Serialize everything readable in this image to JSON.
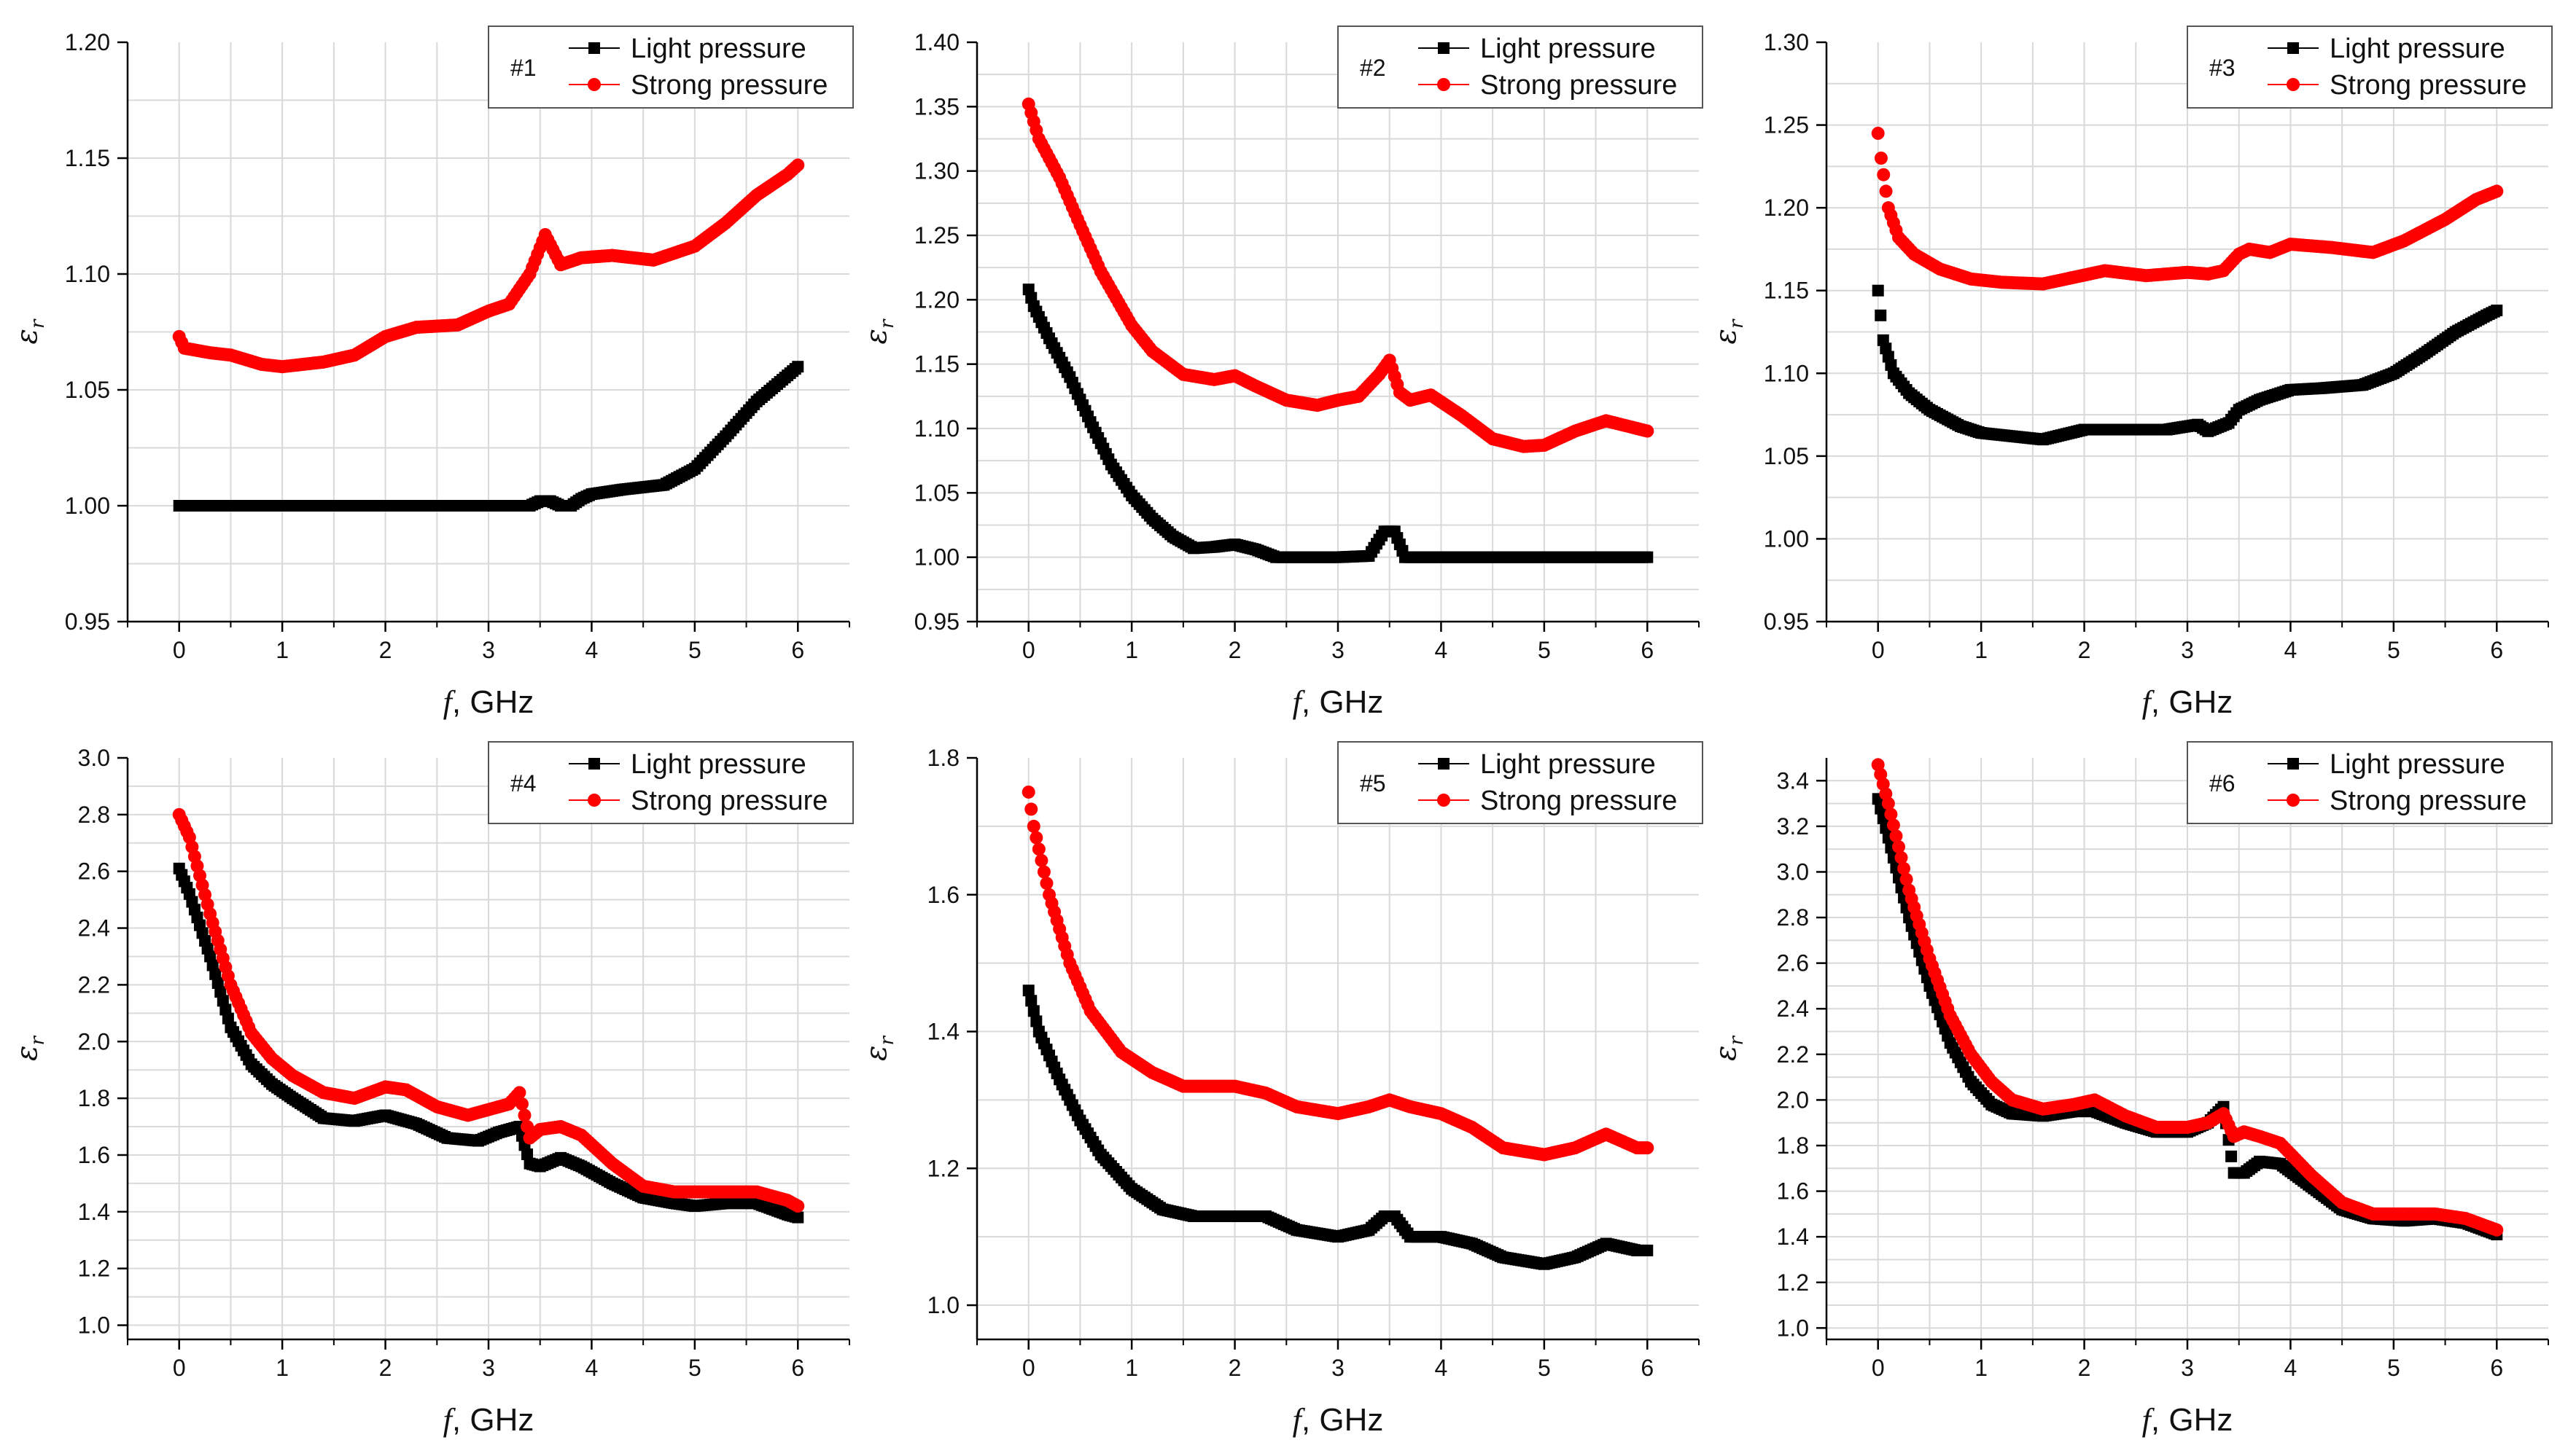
{
  "colors": {
    "light": "#000000",
    "strong": "#ff0000",
    "grid": "#d9d9d9",
    "axis": "#000000"
  },
  "chart_data": [
    {
      "type": "scatter",
      "id": "#1",
      "xlabel_italic": "f",
      "xlabel_unit": ", GHz",
      "ylabel": "ε",
      "ylabel_sub": "r",
      "xlim": [
        -0.5,
        6.5
      ],
      "ylim": [
        0.95,
        1.2
      ],
      "xticks": [
        0,
        1,
        2,
        3,
        4,
        5,
        6
      ],
      "yticks": [
        0.95,
        1.0,
        1.05,
        1.1,
        1.15,
        1.2
      ],
      "yticklabels": [
        "0.95",
        "1.00",
        "1.05",
        "1.10",
        "1.15",
        "1.20"
      ],
      "series": [
        {
          "name": "Light pressure",
          "marker": "square",
          "color": "#000000",
          "x": [
            0,
            0.5,
            1,
            2,
            3,
            3.4,
            3.5,
            3.6,
            3.7,
            3.8,
            3.9,
            4.0,
            4.3,
            4.7,
            5.0,
            5.3,
            5.6,
            6.0
          ],
          "y": [
            1.0,
            1.0,
            1.0,
            1.0,
            1.0,
            1.0,
            1.002,
            1.002,
            1.0,
            1.0,
            1.003,
            1.005,
            1.007,
            1.009,
            1.016,
            1.03,
            1.045,
            1.06
          ]
        },
        {
          "name": "Strong pressure",
          "marker": "circle",
          "color": "#ff0000",
          "x": [
            0,
            0.05,
            0.3,
            0.5,
            0.8,
            1.0,
            1.4,
            1.7,
            2.0,
            2.3,
            2.7,
            3.0,
            3.2,
            3.4,
            3.55,
            3.7,
            3.9,
            4.2,
            4.6,
            5.0,
            5.3,
            5.6,
            5.9,
            6.0
          ],
          "y": [
            1.073,
            1.068,
            1.066,
            1.065,
            1.061,
            1.06,
            1.062,
            1.065,
            1.073,
            1.077,
            1.078,
            1.084,
            1.087,
            1.1,
            1.117,
            1.104,
            1.107,
            1.108,
            1.106,
            1.112,
            1.122,
            1.134,
            1.143,
            1.147
          ]
        }
      ]
    },
    {
      "type": "scatter",
      "id": "#2",
      "xlabel_italic": "f",
      "xlabel_unit": ", GHz",
      "ylabel": "ε",
      "ylabel_sub": "r",
      "xlim": [
        -0.5,
        6.5
      ],
      "ylim": [
        0.95,
        1.4
      ],
      "xticks": [
        0,
        1,
        2,
        3,
        4,
        5,
        6
      ],
      "yticks": [
        0.95,
        1.0,
        1.05,
        1.1,
        1.15,
        1.2,
        1.25,
        1.3,
        1.35,
        1.4
      ],
      "yticklabels": [
        "0.95",
        "1.00",
        "1.05",
        "1.10",
        "1.15",
        "1.20",
        "1.25",
        "1.30",
        "1.35",
        "1.40"
      ],
      "series": [
        {
          "name": "Light pressure",
          "marker": "square",
          "color": "#000000",
          "x": [
            0,
            0.05,
            0.2,
            0.4,
            0.6,
            0.8,
            1.0,
            1.2,
            1.4,
            1.6,
            1.8,
            2.0,
            2.2,
            2.4,
            3.0,
            3.3,
            3.45,
            3.55,
            3.65,
            4.0,
            5.0,
            6.0
          ],
          "y": [
            1.208,
            1.195,
            1.17,
            1.14,
            1.105,
            1.072,
            1.048,
            1.03,
            1.016,
            1.007,
            1.008,
            1.01,
            1.006,
            1.0,
            1.0,
            1.001,
            1.02,
            1.02,
            1.0,
            1.0,
            1.0,
            1.0
          ]
        },
        {
          "name": "Strong pressure",
          "marker": "circle",
          "color": "#ff0000",
          "x": [
            0,
            0.1,
            0.3,
            0.5,
            0.7,
            1.0,
            1.2,
            1.5,
            1.8,
            2.0,
            2.2,
            2.5,
            2.8,
            3.0,
            3.2,
            3.4,
            3.5,
            3.6,
            3.7,
            3.9,
            4.2,
            4.5,
            4.8,
            5.0,
            5.3,
            5.6,
            5.9,
            6.0
          ],
          "y": [
            1.352,
            1.325,
            1.295,
            1.258,
            1.222,
            1.18,
            1.16,
            1.142,
            1.138,
            1.141,
            1.133,
            1.122,
            1.118,
            1.122,
            1.125,
            1.142,
            1.153,
            1.128,
            1.122,
            1.126,
            1.11,
            1.092,
            1.086,
            1.087,
            1.098,
            1.106,
            1.1,
            1.098
          ]
        }
      ]
    },
    {
      "type": "scatter",
      "id": "#3",
      "xlabel_italic": "f",
      "xlabel_unit": ", GHz",
      "ylabel": "ε",
      "ylabel_sub": "r",
      "xlim": [
        -0.5,
        6.5
      ],
      "ylim": [
        0.95,
        1.3
      ],
      "xticks": [
        0,
        1,
        2,
        3,
        4,
        5,
        6
      ],
      "yticks": [
        0.95,
        1.0,
        1.05,
        1.1,
        1.15,
        1.2,
        1.25,
        1.3
      ],
      "yticklabels": [
        "0.95",
        "1.00",
        "1.05",
        "1.10",
        "1.15",
        "1.20",
        "1.25",
        "1.30"
      ],
      "series": [
        {
          "name": "Light pressure",
          "marker": "square",
          "color": "#000000",
          "x": [
            0,
            0.05,
            0.15,
            0.3,
            0.5,
            0.8,
            1.0,
            1.3,
            1.6,
            2.0,
            2.4,
            2.8,
            3.1,
            3.2,
            3.4,
            3.5,
            3.7,
            4.0,
            4.3,
            4.7,
            5.0,
            5.3,
            5.6,
            5.9,
            6.0
          ],
          "y": [
            1.15,
            1.12,
            1.1,
            1.088,
            1.078,
            1.068,
            1.064,
            1.062,
            1.06,
            1.066,
            1.066,
            1.066,
            1.069,
            1.065,
            1.07,
            1.078,
            1.084,
            1.09,
            1.091,
            1.093,
            1.1,
            1.112,
            1.125,
            1.135,
            1.138
          ]
        },
        {
          "name": "Strong pressure",
          "marker": "circle",
          "color": "#ff0000",
          "x": [
            0,
            0.03,
            0.1,
            0.2,
            0.35,
            0.6,
            0.9,
            1.2,
            1.6,
            1.9,
            2.2,
            2.6,
            3.0,
            3.2,
            3.35,
            3.5,
            3.6,
            3.8,
            4.0,
            4.4,
            4.8,
            5.1,
            5.5,
            5.8,
            6.0
          ],
          "y": [
            1.245,
            1.23,
            1.2,
            1.182,
            1.172,
            1.163,
            1.157,
            1.155,
            1.154,
            1.158,
            1.162,
            1.159,
            1.161,
            1.16,
            1.162,
            1.172,
            1.175,
            1.173,
            1.178,
            1.176,
            1.173,
            1.18,
            1.193,
            1.205,
            1.21
          ]
        }
      ]
    },
    {
      "type": "scatter",
      "id": "#4",
      "xlabel_italic": "f",
      "xlabel_unit": ", GHz",
      "ylabel": "ε",
      "ylabel_sub": "r",
      "xlim": [
        -0.5,
        6.5
      ],
      "ylim": [
        0.95,
        3.0
      ],
      "xticks": [
        0,
        1,
        2,
        3,
        4,
        5,
        6
      ],
      "yticks": [
        1.0,
        1.2,
        1.4,
        1.6,
        1.8,
        2.0,
        2.2,
        2.4,
        2.6,
        2.8,
        3.0
      ],
      "yticklabels": [
        "1.0",
        "1.2",
        "1.4",
        "1.6",
        "1.8",
        "2.0",
        "2.2",
        "2.4",
        "2.6",
        "2.8",
        "3.0"
      ],
      "series": [
        {
          "name": "Light pressure",
          "marker": "square",
          "color": "#000000",
          "x": [
            0,
            0.1,
            0.3,
            0.5,
            0.7,
            0.9,
            1.1,
            1.4,
            1.7,
            2.0,
            2.3,
            2.6,
            2.9,
            3.1,
            3.3,
            3.4,
            3.5,
            3.7,
            3.9,
            4.2,
            4.5,
            4.8,
            5.0,
            5.3,
            5.6,
            5.9,
            6.0
          ],
          "y": [
            2.61,
            2.52,
            2.3,
            2.05,
            1.92,
            1.85,
            1.8,
            1.73,
            1.72,
            1.74,
            1.71,
            1.66,
            1.65,
            1.68,
            1.7,
            1.57,
            1.56,
            1.59,
            1.56,
            1.5,
            1.45,
            1.43,
            1.42,
            1.43,
            1.43,
            1.39,
            1.38
          ]
        },
        {
          "name": "Strong pressure",
          "marker": "circle",
          "color": "#ff0000",
          "x": [
            0,
            0.1,
            0.3,
            0.5,
            0.7,
            0.9,
            1.1,
            1.4,
            1.7,
            2.0,
            2.2,
            2.5,
            2.8,
            3.0,
            3.2,
            3.3,
            3.4,
            3.5,
            3.7,
            3.9,
            4.2,
            4.5,
            4.8,
            5.0,
            5.3,
            5.6,
            5.9,
            6.0
          ],
          "y": [
            2.8,
            2.72,
            2.45,
            2.2,
            2.03,
            1.94,
            1.88,
            1.82,
            1.8,
            1.84,
            1.83,
            1.77,
            1.74,
            1.76,
            1.78,
            1.82,
            1.66,
            1.69,
            1.7,
            1.67,
            1.57,
            1.49,
            1.47,
            1.47,
            1.47,
            1.47,
            1.44,
            1.42
          ]
        }
      ]
    },
    {
      "type": "scatter",
      "id": "#5",
      "xlabel_italic": "f",
      "xlabel_unit": ", GHz",
      "ylabel": "ε",
      "ylabel_sub": "r",
      "xlim": [
        -0.5,
        6.5
      ],
      "ylim": [
        0.95,
        1.8
      ],
      "xticks": [
        0,
        1,
        2,
        3,
        4,
        5,
        6
      ],
      "yticks": [
        1.0,
        1.2,
        1.4,
        1.6,
        1.8
      ],
      "yticklabels": [
        "1.0",
        "1.2",
        "1.4",
        "1.6",
        "1.8"
      ],
      "series": [
        {
          "name": "Light pressure",
          "marker": "square",
          "color": "#000000",
          "x": [
            0,
            0.1,
            0.3,
            0.5,
            0.7,
            1.0,
            1.3,
            1.6,
            2.0,
            2.3,
            2.6,
            3.0,
            3.3,
            3.45,
            3.55,
            3.7,
            4.0,
            4.3,
            4.6,
            5.0,
            5.3,
            5.6,
            5.9,
            6.0
          ],
          "y": [
            1.46,
            1.4,
            1.33,
            1.27,
            1.22,
            1.17,
            1.14,
            1.13,
            1.13,
            1.13,
            1.11,
            1.1,
            1.11,
            1.13,
            1.13,
            1.1,
            1.1,
            1.09,
            1.07,
            1.06,
            1.07,
            1.09,
            1.08,
            1.08
          ]
        },
        {
          "name": "Strong pressure",
          "marker": "circle",
          "color": "#ff0000",
          "x": [
            0,
            0.05,
            0.2,
            0.4,
            0.6,
            0.9,
            1.2,
            1.5,
            1.8,
            2.0,
            2.3,
            2.6,
            3.0,
            3.3,
            3.5,
            3.7,
            4.0,
            4.3,
            4.6,
            5.0,
            5.3,
            5.6,
            5.9,
            6.0
          ],
          "y": [
            1.75,
            1.7,
            1.6,
            1.5,
            1.43,
            1.37,
            1.34,
            1.32,
            1.32,
            1.32,
            1.31,
            1.29,
            1.28,
            1.29,
            1.3,
            1.29,
            1.28,
            1.26,
            1.23,
            1.22,
            1.23,
            1.25,
            1.23,
            1.23
          ]
        }
      ]
    },
    {
      "type": "scatter",
      "id": "#6",
      "xlabel_italic": "f",
      "xlabel_unit": ", GHz",
      "ylabel": "ε",
      "ylabel_sub": "r",
      "xlim": [
        -0.5,
        6.5
      ],
      "ylim": [
        0.95,
        3.5
      ],
      "xticks": [
        0,
        1,
        2,
        3,
        4,
        5,
        6
      ],
      "yticks": [
        1.0,
        1.2,
        1.4,
        1.6,
        1.8,
        2.0,
        2.2,
        2.4,
        2.6,
        2.8,
        3.0,
        3.2,
        3.4
      ],
      "yticklabels": [
        "1.0",
        "1.2",
        "1.4",
        "1.6",
        "1.8",
        "2.0",
        "2.2",
        "2.4",
        "2.6",
        "2.8",
        "3.0",
        "3.2",
        "3.4"
      ],
      "series": [
        {
          "name": "Light pressure",
          "marker": "square",
          "color": "#000000",
          "x": [
            0,
            0.1,
            0.3,
            0.5,
            0.7,
            0.9,
            1.1,
            1.3,
            1.6,
            1.9,
            2.1,
            2.4,
            2.7,
            3.0,
            3.2,
            3.35,
            3.45,
            3.55,
            3.7,
            3.9,
            4.2,
            4.5,
            4.8,
            5.1,
            5.4,
            5.7,
            6.0
          ],
          "y": [
            3.32,
            3.15,
            2.8,
            2.5,
            2.25,
            2.08,
            1.98,
            1.94,
            1.93,
            1.95,
            1.95,
            1.9,
            1.86,
            1.86,
            1.9,
            1.97,
            1.68,
            1.68,
            1.73,
            1.72,
            1.62,
            1.52,
            1.48,
            1.47,
            1.48,
            1.46,
            1.41
          ]
        },
        {
          "name": "Strong pressure",
          "marker": "circle",
          "color": "#ff0000",
          "x": [
            0,
            0.1,
            0.3,
            0.5,
            0.7,
            0.9,
            1.1,
            1.3,
            1.6,
            1.9,
            2.1,
            2.4,
            2.7,
            3.0,
            3.2,
            3.35,
            3.45,
            3.55,
            3.7,
            3.9,
            4.2,
            4.5,
            4.8,
            5.1,
            5.4,
            5.7,
            6.0
          ],
          "y": [
            3.47,
            3.3,
            2.92,
            2.62,
            2.37,
            2.2,
            2.08,
            2.0,
            1.96,
            1.98,
            2.0,
            1.93,
            1.88,
            1.88,
            1.9,
            1.94,
            1.84,
            1.86,
            1.84,
            1.81,
            1.67,
            1.55,
            1.5,
            1.5,
            1.5,
            1.48,
            1.43
          ]
        }
      ]
    }
  ]
}
